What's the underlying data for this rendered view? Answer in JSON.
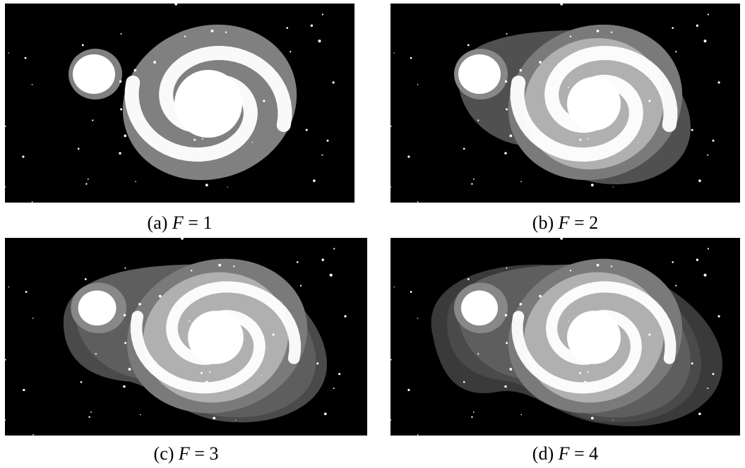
{
  "panels": [
    {
      "label": "(a)",
      "variable": "F",
      "rest": "= 1"
    },
    {
      "label": "(b)",
      "variable": "F",
      "rest": "= 2"
    },
    {
      "label": "(c)",
      "variable": "F",
      "rest": "= 3"
    },
    {
      "label": "(d)",
      "variable": "F",
      "rest": "= 4"
    }
  ]
}
